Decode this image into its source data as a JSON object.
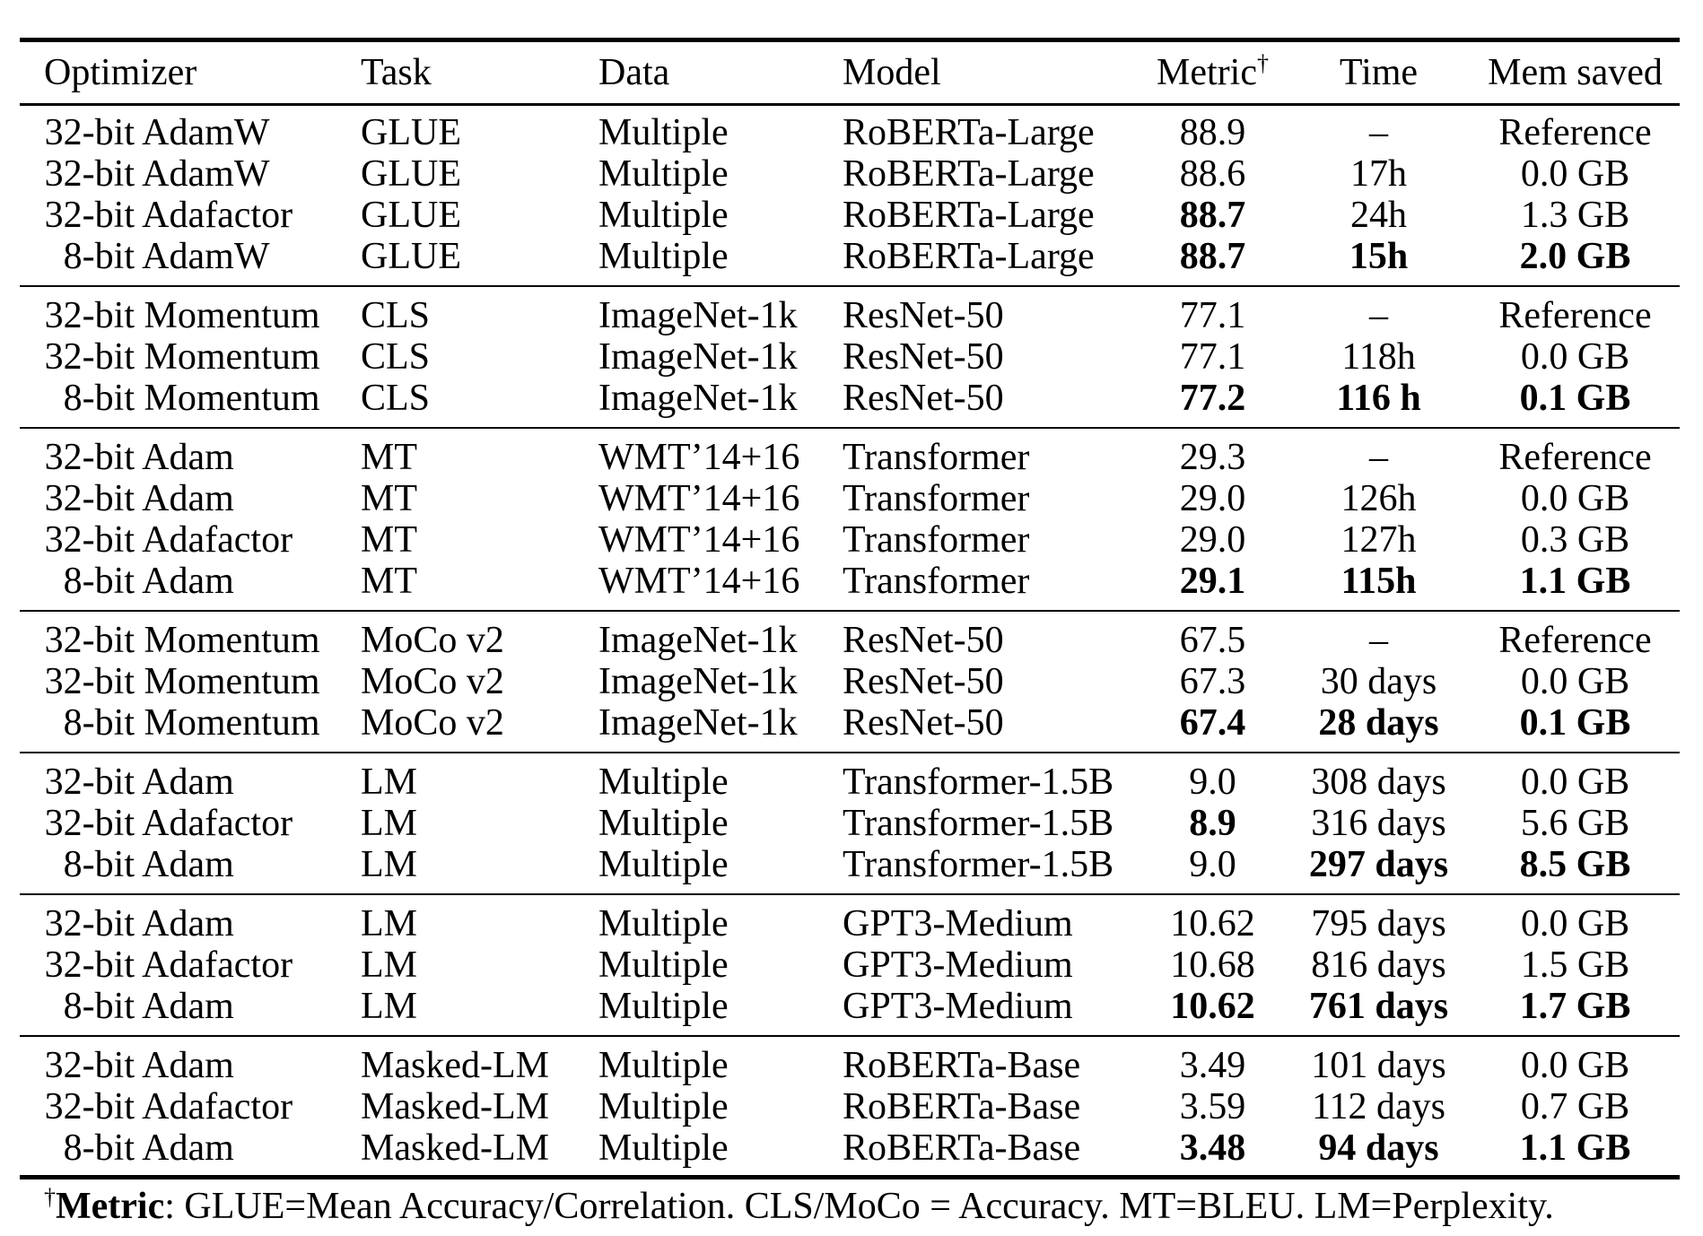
{
  "style": {
    "background": "#ffffff",
    "text_color": "#000000"
  },
  "table": {
    "columns": [
      {
        "label": "Optimizer"
      },
      {
        "label": "Task"
      },
      {
        "label": "Data"
      },
      {
        "label": "Model"
      },
      {
        "label": "Metric",
        "sup": "†"
      },
      {
        "label": "Time"
      },
      {
        "label": "Mem saved"
      }
    ],
    "groups": [
      {
        "rows": [
          {
            "cells": [
              "32-bit AdamW",
              "GLUE",
              "Multiple",
              "RoBERTa-Large",
              "88.9",
              "–",
              "Reference"
            ],
            "bold": []
          },
          {
            "cells": [
              "32-bit AdamW",
              "GLUE",
              "Multiple",
              "RoBERTa-Large",
              "88.6",
              "17h",
              "0.0 GB"
            ],
            "bold": []
          },
          {
            "cells": [
              "32-bit Adafactor",
              "GLUE",
              "Multiple",
              "RoBERTa-Large",
              "88.7",
              "24h",
              "1.3 GB"
            ],
            "bold": [
              4
            ]
          },
          {
            "cells": [
              "8-bit AdamW",
              "GLUE",
              "Multiple",
              "RoBERTa-Large",
              "88.7",
              "15h",
              "2.0 GB"
            ],
            "bold": [
              4,
              5,
              6
            ]
          }
        ]
      },
      {
        "rows": [
          {
            "cells": [
              "32-bit Momentum",
              "CLS",
              "ImageNet-1k",
              "ResNet-50",
              "77.1",
              "–",
              "Reference"
            ],
            "bold": []
          },
          {
            "cells": [
              "32-bit Momentum",
              "CLS",
              "ImageNet-1k",
              "ResNet-50",
              "77.1",
              "118h",
              "0.0 GB"
            ],
            "bold": []
          },
          {
            "cells": [
              "8-bit Momentum",
              "CLS",
              "ImageNet-1k",
              "ResNet-50",
              "77.2",
              "116 h",
              "0.1 GB"
            ],
            "bold": [
              4,
              5,
              6
            ]
          }
        ]
      },
      {
        "rows": [
          {
            "cells": [
              "32-bit Adam",
              "MT",
              "WMT’14+16",
              "Transformer",
              "29.3",
              "–",
              "Reference"
            ],
            "bold": []
          },
          {
            "cells": [
              "32-bit Adam",
              "MT",
              "WMT’14+16",
              "Transformer",
              "29.0",
              "126h",
              "0.0 GB"
            ],
            "bold": []
          },
          {
            "cells": [
              "32-bit Adafactor",
              "MT",
              "WMT’14+16",
              "Transformer",
              "29.0",
              "127h",
              "0.3 GB"
            ],
            "bold": []
          },
          {
            "cells": [
              "8-bit Adam",
              "MT",
              "WMT’14+16",
              "Transformer",
              "29.1",
              "115h",
              "1.1 GB"
            ],
            "bold": [
              4,
              5,
              6
            ]
          }
        ]
      },
      {
        "rows": [
          {
            "cells": [
              "32-bit Momentum",
              "MoCo v2",
              "ImageNet-1k",
              "ResNet-50",
              "67.5",
              "–",
              "Reference"
            ],
            "bold": []
          },
          {
            "cells": [
              "32-bit Momentum",
              "MoCo v2",
              "ImageNet-1k",
              "ResNet-50",
              "67.3",
              "30 days",
              "0.0 GB"
            ],
            "bold": []
          },
          {
            "cells": [
              "8-bit Momentum",
              "MoCo v2",
              "ImageNet-1k",
              "ResNet-50",
              "67.4",
              "28 days",
              "0.1 GB"
            ],
            "bold": [
              4,
              5,
              6
            ]
          }
        ]
      },
      {
        "rows": [
          {
            "cells": [
              "32-bit Adam",
              "LM",
              "Multiple",
              "Transformer-1.5B",
              "9.0",
              "308 days",
              "0.0 GB"
            ],
            "bold": []
          },
          {
            "cells": [
              "32-bit Adafactor",
              "LM",
              "Multiple",
              "Transformer-1.5B",
              "8.9",
              "316 days",
              "5.6 GB"
            ],
            "bold": [
              4
            ]
          },
          {
            "cells": [
              "8-bit Adam",
              "LM",
              "Multiple",
              "Transformer-1.5B",
              "9.0",
              "297 days",
              "8.5 GB"
            ],
            "bold": [
              5,
              6
            ]
          }
        ]
      },
      {
        "rows": [
          {
            "cells": [
              "32-bit Adam",
              "LM",
              "Multiple",
              "GPT3-Medium",
              "10.62",
              "795 days",
              "0.0 GB"
            ],
            "bold": []
          },
          {
            "cells": [
              "32-bit Adafactor",
              "LM",
              "Multiple",
              "GPT3-Medium",
              "10.68",
              "816 days",
              "1.5 GB"
            ],
            "bold": []
          },
          {
            "cells": [
              "8-bit Adam",
              "LM",
              "Multiple",
              "GPT3-Medium",
              "10.62",
              "761 days",
              "1.7 GB"
            ],
            "bold": [
              4,
              5,
              6
            ]
          }
        ]
      },
      {
        "rows": [
          {
            "cells": [
              "32-bit Adam",
              "Masked-LM",
              "Multiple",
              "RoBERTa-Base",
              "3.49",
              "101 days",
              "0.0 GB"
            ],
            "bold": []
          },
          {
            "cells": [
              "32-bit Adafactor",
              "Masked-LM",
              "Multiple",
              "RoBERTa-Base",
              "3.59",
              "112 days",
              "0.7 GB"
            ],
            "bold": []
          },
          {
            "cells": [
              "8-bit Adam",
              "Masked-LM",
              "Multiple",
              "RoBERTa-Base",
              "3.48",
              "94 days",
              "1.1 GB"
            ],
            "bold": [
              4,
              5,
              6
            ]
          }
        ]
      }
    ]
  },
  "footnote": {
    "dagger": "†",
    "label": "Metric",
    "text": ": GLUE=Mean Accuracy/Correlation. CLS/MoCo = Accuracy. MT=BLEU. LM=Perplexity."
  }
}
